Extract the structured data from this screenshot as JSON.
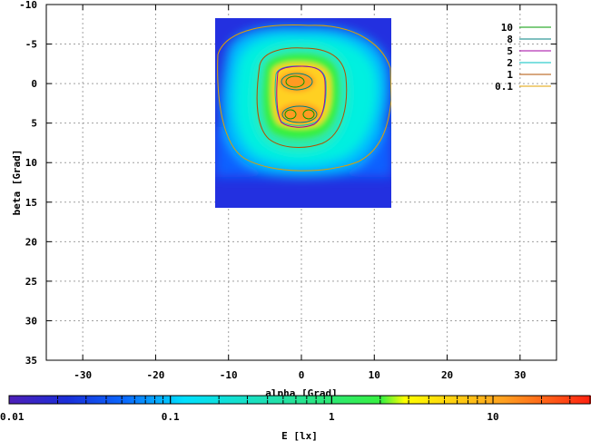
{
  "chart_data": {
    "type": "heatmap",
    "xlabel": "alpha [Grad]",
    "ylabel": "beta [Grad]",
    "colorbar_label": "E [lx]",
    "xlim": [
      -35,
      35
    ],
    "ylim": [
      -10,
      35
    ],
    "y_inverted": true,
    "x_ticks": [
      -30,
      -20,
      -10,
      0,
      10,
      20,
      30
    ],
    "y_ticks": [
      -10,
      -5,
      0,
      5,
      10,
      15,
      20,
      25,
      30,
      35
    ],
    "x_tick_labels": [
      "-30",
      "-20",
      "-10",
      "0",
      "10",
      "20",
      "30"
    ],
    "y_tick_labels": [
      "-10",
      "-5",
      "0",
      "5",
      "10",
      "15",
      "20",
      "25",
      "30",
      "35"
    ],
    "grid": true,
    "data_extent": {
      "alpha": [
        -12,
        12
      ],
      "beta": [
        -8,
        16
      ]
    },
    "colorbar_scale": "log",
    "colorbar_range": [
      0.01,
      40
    ],
    "colorbar_ticks": [
      0.01,
      0.1,
      1,
      10
    ],
    "colorbar_tick_labels": [
      "0.01",
      "0.1",
      "1",
      "10"
    ],
    "legend_placement": "top-right",
    "contours": [
      {
        "name": "10",
        "level": 10,
        "color": "#009900"
      },
      {
        "name": "8",
        "level": 8,
        "color": "#008080"
      },
      {
        "name": "5",
        "level": 5,
        "color": "#a000a0"
      },
      {
        "name": "2",
        "level": 2,
        "color": "#00c0c0"
      },
      {
        "name": "1",
        "level": 1,
        "color": "#b05000"
      },
      {
        "name": "0.1",
        "level": 0.1,
        "color": "#e0a000"
      }
    ]
  }
}
